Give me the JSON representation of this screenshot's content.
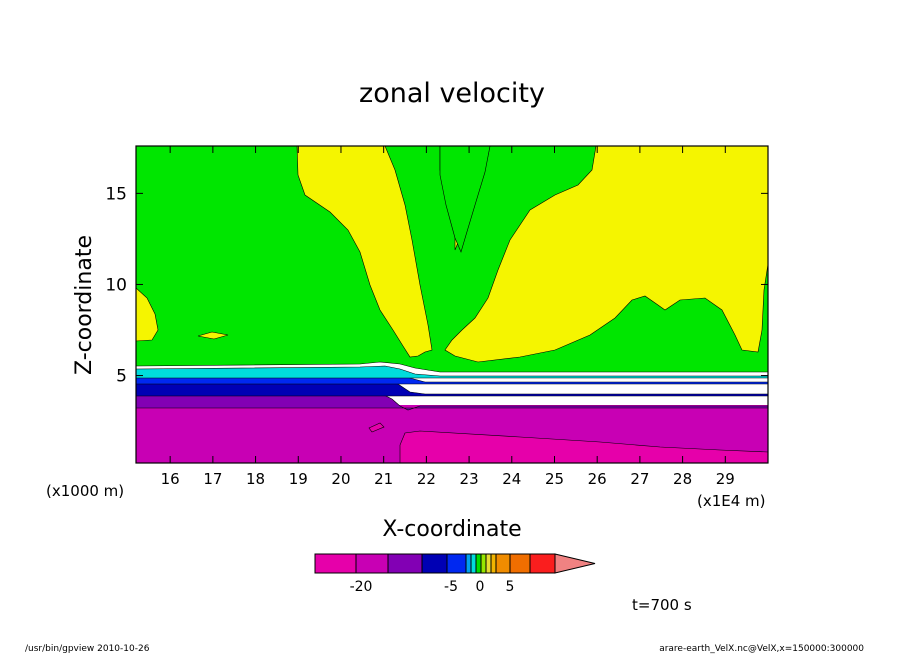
{
  "chart_data": {
    "type": "contour",
    "title": "zonal velocity",
    "xlabel": "X-coordinate",
    "ylabel": "Z-coordinate",
    "x_unit_left": "(x1000 m)",
    "x_unit_right": "(x1E4 m)",
    "xlim": [
      15.2,
      30.0
    ],
    "ylim": [
      0.2,
      17.6
    ],
    "x_ticks": [
      16,
      17,
      18,
      19,
      20,
      21,
      22,
      23,
      24,
      25,
      26,
      27,
      28,
      29
    ],
    "y_ticks": [
      5,
      10,
      15
    ],
    "levels": [
      {
        "min": null,
        "max": -25,
        "color": "#E600AA"
      },
      {
        "min": -25,
        "max": -20,
        "color": "#C800B4"
      },
      {
        "min": -20,
        "max": -15,
        "color": "#8200B4"
      },
      {
        "min": -15,
        "max": -10,
        "color": "#0000B4"
      },
      {
        "min": -10,
        "max": -5,
        "color": "#0028F0"
      },
      {
        "min": -5,
        "max": -4,
        "color": "#00A0F0"
      },
      {
        "min": -4,
        "max": -3,
        "color": "#00DCDC"
      },
      {
        "min": -3,
        "max": -2,
        "color": "#00DC00"
      },
      {
        "min": -2,
        "max": -1,
        "color": "#96E600"
      },
      {
        "min": -1,
        "max": 0,
        "color": "#E6DC32"
      },
      {
        "min": 0,
        "max": 1,
        "color": "#F0B400"
      },
      {
        "min": 1,
        "max": 5,
        "color": "#F08C00"
      },
      {
        "min": 5,
        "max": 10,
        "color": "#F06E00"
      },
      {
        "min": 10,
        "max": 20,
        "color": "#FA1E1E"
      },
      {
        "min": 20,
        "max": null,
        "color": "#F08282"
      }
    ],
    "colorbar_ticks": [
      "-20",
      "-5",
      "0",
      "5"
    ],
    "regions": {
      "green_fill": "#00E600",
      "yellow_fill": "#F5F500"
    },
    "time_label": "t=700 s",
    "grid": false
  },
  "footer": {
    "left": "/usr/bin/gpview  2010-10-26",
    "right": "arare-earth_VelX.nc@VelX,x=150000:300000"
  }
}
